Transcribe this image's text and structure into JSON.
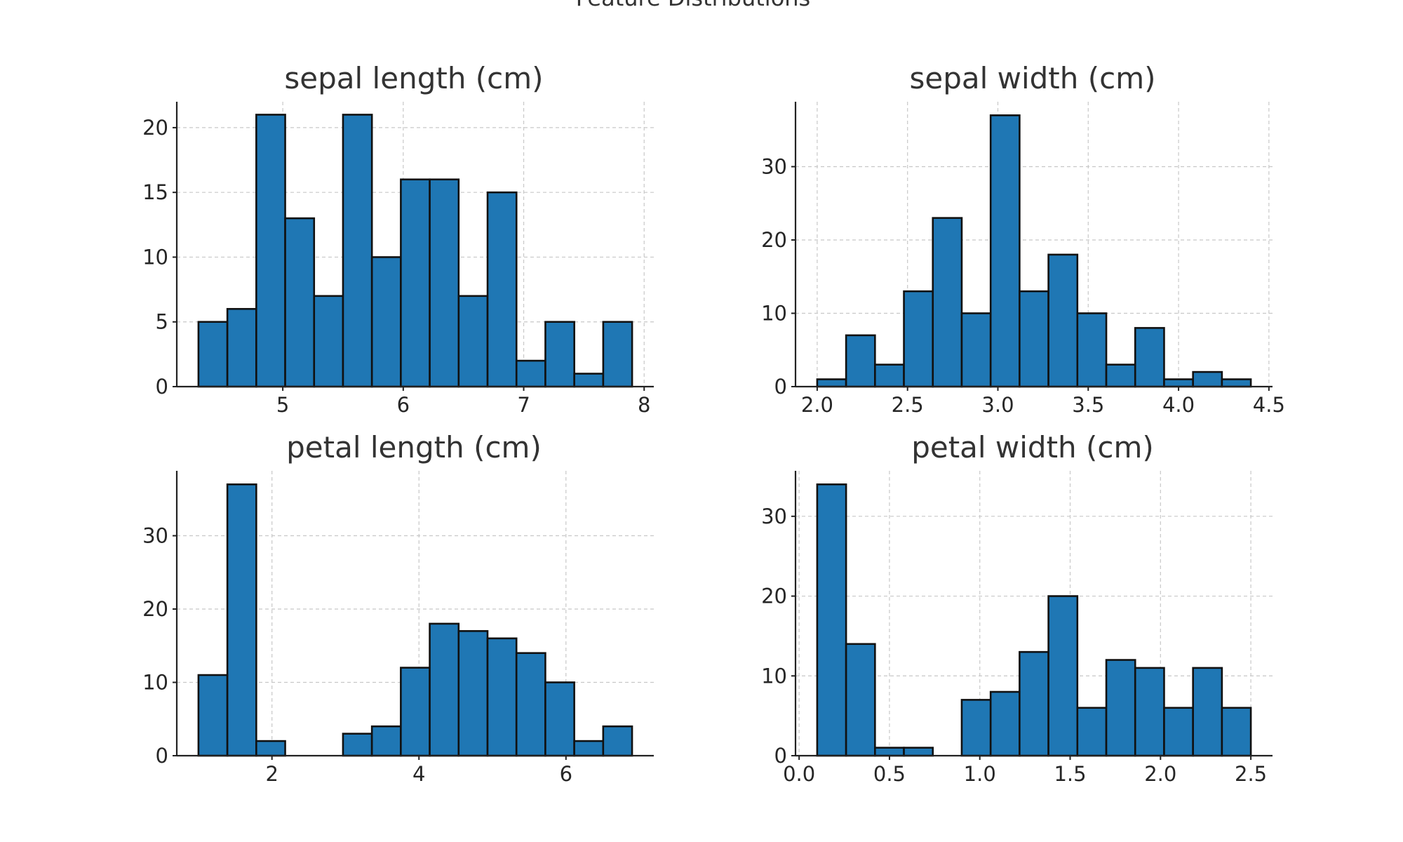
{
  "figure": {
    "title": "Feature Distributions",
    "bar_color": "#1f77b4",
    "edge_color": "#111111"
  },
  "chart_data": [
    {
      "type": "bar",
      "title": "sepal length (cm)",
      "xlim": [
        4.12,
        8.08
      ],
      "ylim": [
        0,
        22
      ],
      "x_ticks": [
        5,
        6,
        7,
        8
      ],
      "x_tick_labels": [
        "5",
        "6",
        "7",
        "8"
      ],
      "y_ticks": [
        0,
        5,
        10,
        15,
        20
      ],
      "y_tick_labels": [
        "0",
        "5",
        "10",
        "15",
        "20"
      ],
      "bin_start": 4.3,
      "bin_width": 0.24,
      "values": [
        5,
        6,
        21,
        13,
        7,
        21,
        10,
        16,
        16,
        7,
        15,
        2,
        5,
        1,
        5
      ],
      "grid": true
    },
    {
      "type": "bar",
      "title": "sepal width (cm)",
      "xlim": [
        1.88,
        4.52
      ],
      "ylim": [
        0,
        38.85
      ],
      "x_ticks": [
        2.0,
        2.5,
        3.0,
        3.5,
        4.0,
        4.5
      ],
      "x_tick_labels": [
        "2.0",
        "2.5",
        "3.0",
        "3.5",
        "4.0",
        "4.5"
      ],
      "y_ticks": [
        0,
        10,
        20,
        30
      ],
      "y_tick_labels": [
        "0",
        "10",
        "20",
        "30"
      ],
      "bin_start": 2.0,
      "bin_width": 0.16,
      "values": [
        1,
        7,
        3,
        13,
        23,
        10,
        37,
        13,
        18,
        10,
        3,
        8,
        1,
        2,
        1
      ],
      "grid": true
    },
    {
      "type": "bar",
      "title": "petal length (cm)",
      "xlim": [
        0.705,
        7.195
      ],
      "ylim": [
        0,
        38.85
      ],
      "x_ticks": [
        2,
        4,
        6
      ],
      "x_tick_labels": [
        "2",
        "4",
        "6"
      ],
      "y_ticks": [
        0,
        10,
        20,
        30
      ],
      "y_tick_labels": [
        "0",
        "10",
        "20",
        "30"
      ],
      "bin_start": 1.0,
      "bin_width": 0.3933,
      "values": [
        11,
        37,
        2,
        0,
        0,
        3,
        4,
        12,
        18,
        17,
        16,
        14,
        10,
        2,
        4
      ],
      "grid": true
    },
    {
      "type": "bar",
      "title": "petal width (cm)",
      "xlim": [
        -0.02,
        2.62
      ],
      "ylim": [
        0,
        35.7
      ],
      "x_ticks": [
        0.0,
        0.5,
        1.0,
        1.5,
        2.0,
        2.5
      ],
      "x_tick_labels": [
        "0.0",
        "0.5",
        "1.0",
        "1.5",
        "2.0",
        "2.5"
      ],
      "y_ticks": [
        0,
        10,
        20,
        30
      ],
      "y_tick_labels": [
        "0",
        "10",
        "20",
        "30"
      ],
      "bin_start": 0.1,
      "bin_width": 0.16,
      "values": [
        34,
        14,
        1,
        1,
        0,
        7,
        8,
        13,
        20,
        6,
        12,
        11,
        6,
        11,
        6
      ],
      "grid": true
    }
  ]
}
